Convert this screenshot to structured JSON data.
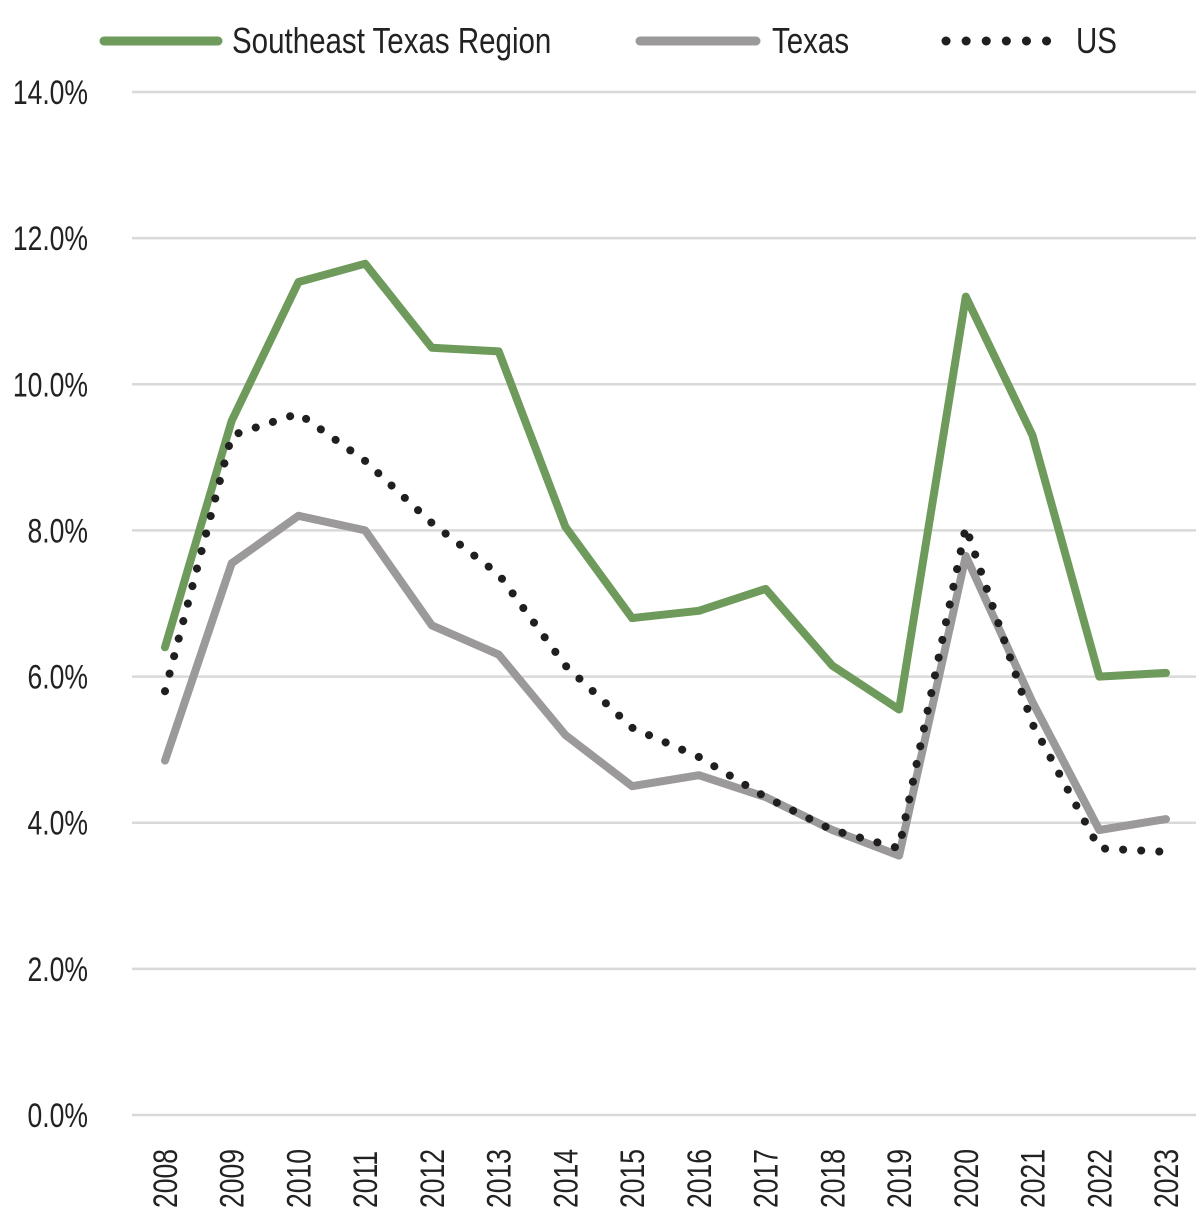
{
  "chart_data": {
    "type": "line",
    "title": "",
    "xlabel": "",
    "ylabel": "",
    "ylim": [
      0,
      14
    ],
    "y_ticks": [
      "0.0%",
      "2.0%",
      "4.0%",
      "6.0%",
      "8.0%",
      "10.0%",
      "12.0%",
      "14.0%"
    ],
    "y_tick_values": [
      0,
      2,
      4,
      6,
      8,
      10,
      12,
      14
    ],
    "categories": [
      "2008",
      "2009",
      "2010",
      "2011",
      "2012",
      "2013",
      "2014",
      "2015",
      "2016",
      "2017",
      "2018",
      "2019",
      "2020",
      "2021",
      "2022",
      "2023"
    ],
    "grid": true,
    "legend_position": "top",
    "series": [
      {
        "name": "Southeast Texas Region",
        "color": "#6e9b5b",
        "style": "solid",
        "values": [
          6.4,
          9.5,
          11.4,
          11.65,
          10.5,
          10.45,
          8.05,
          6.8,
          6.9,
          7.2,
          6.15,
          5.55,
          11.2,
          9.3,
          6.0,
          6.05
        ]
      },
      {
        "name": "Texas",
        "color": "#9b9999",
        "style": "solid",
        "values": [
          4.85,
          7.55,
          8.2,
          8.0,
          6.7,
          6.3,
          5.2,
          4.5,
          4.65,
          4.35,
          3.9,
          3.55,
          7.65,
          5.65,
          3.9,
          4.05
        ]
      },
      {
        "name": "US",
        "color": "#1f1f1f",
        "style": "dotted",
        "values": [
          5.8,
          9.3,
          9.6,
          8.95,
          8.1,
          7.4,
          6.15,
          5.3,
          4.9,
          4.35,
          3.9,
          3.65,
          8.05,
          5.35,
          3.65,
          3.6
        ]
      }
    ]
  }
}
